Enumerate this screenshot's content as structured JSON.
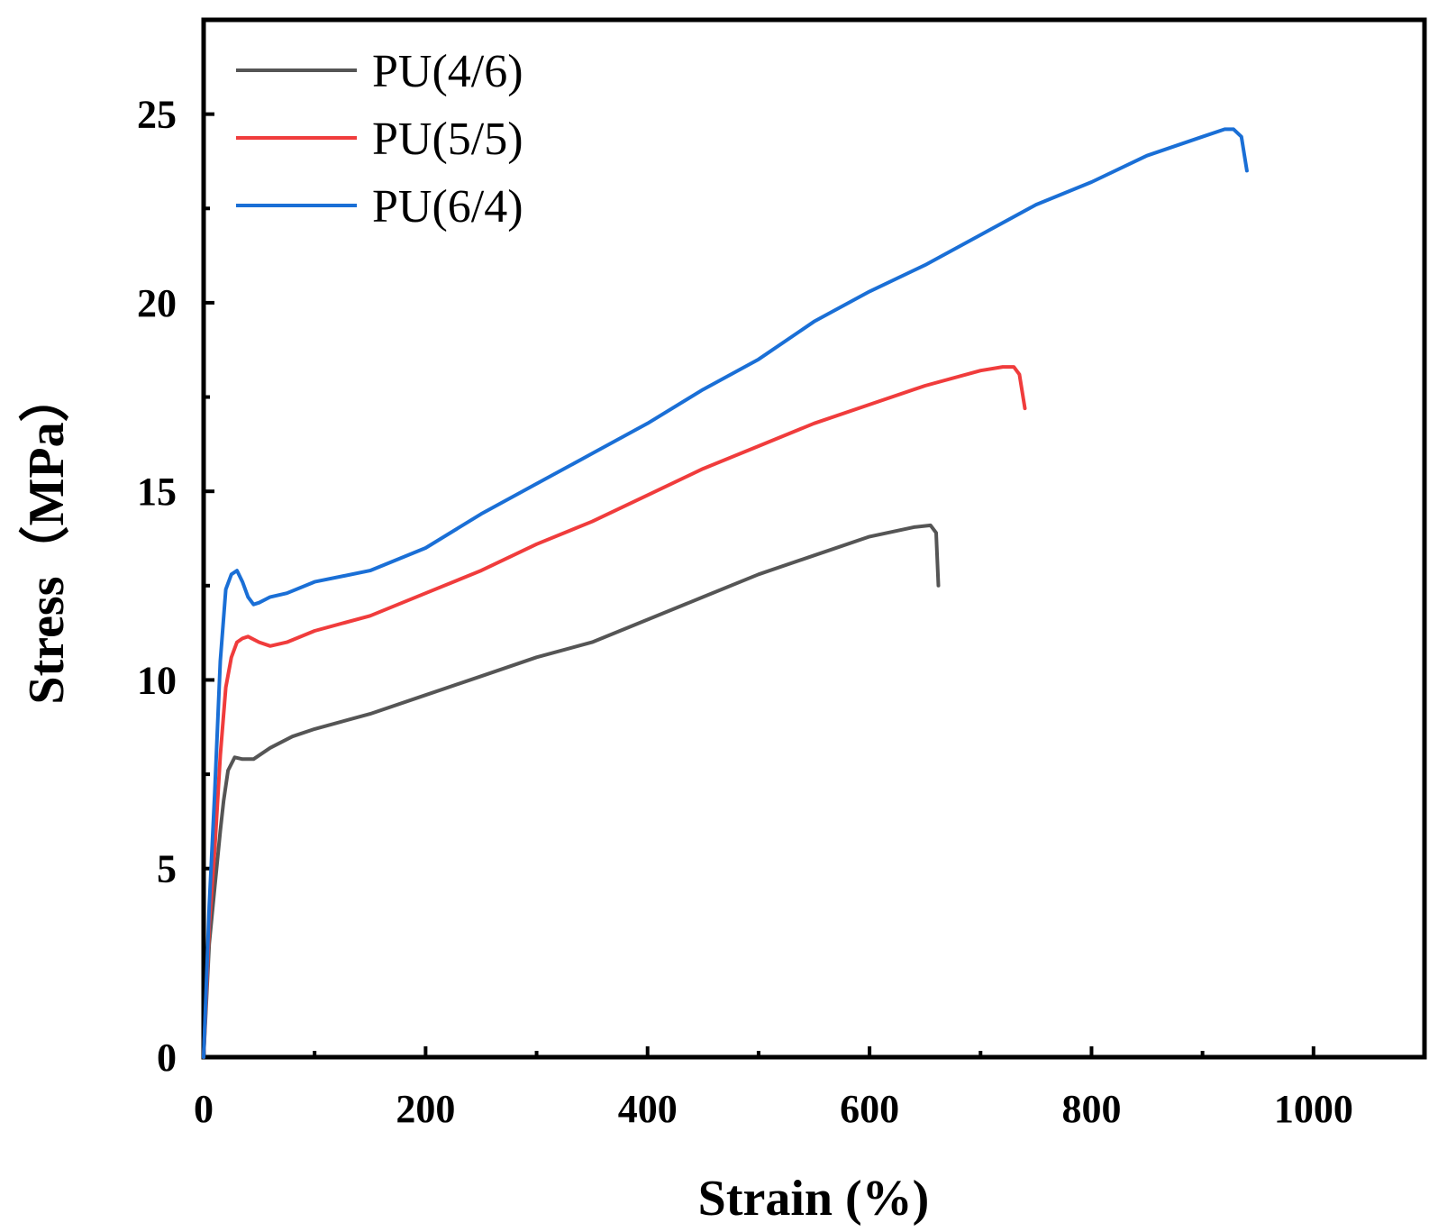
{
  "chart_data": {
    "type": "line",
    "title": "",
    "xlabel": "Strain (%)",
    "ylabel": "Stress（MPa）",
    "xlim": [
      0,
      1100
    ],
    "ylim": [
      0,
      27.5
    ],
    "xticks": [
      0,
      200,
      400,
      600,
      800,
      1000
    ],
    "xtick_labels": [
      "0",
      "200",
      "400",
      "600",
      "800",
      "1000"
    ],
    "yticks": [
      0,
      5,
      10,
      15,
      20,
      25
    ],
    "ytick_labels": [
      "0",
      "5",
      "10",
      "15",
      "20",
      "25"
    ],
    "grid": false,
    "legend_position": "top-left",
    "series": [
      {
        "name": "PU(4/6)",
        "color": "#555555",
        "x": [
          0,
          5,
          10,
          15,
          18,
          22,
          28,
          35,
          45,
          60,
          80,
          100,
          150,
          200,
          250,
          300,
          350,
          400,
          450,
          500,
          550,
          600,
          640,
          655,
          660,
          662
        ],
        "y": [
          0,
          3.0,
          4.5,
          6.0,
          6.8,
          7.6,
          7.95,
          7.9,
          7.9,
          8.2,
          8.5,
          8.7,
          9.1,
          9.6,
          10.1,
          10.6,
          11.0,
          11.6,
          12.2,
          12.8,
          13.3,
          13.8,
          14.05,
          14.1,
          13.9,
          12.5
        ]
      },
      {
        "name": "PU(5/5)",
        "color": "#f03c3c",
        "x": [
          0,
          5,
          10,
          15,
          20,
          25,
          30,
          35,
          40,
          50,
          60,
          75,
          100,
          150,
          200,
          250,
          300,
          350,
          400,
          450,
          500,
          550,
          600,
          650,
          700,
          720,
          730,
          735,
          740
        ],
        "y": [
          0,
          3.5,
          5.5,
          8.0,
          9.8,
          10.6,
          11.0,
          11.1,
          11.15,
          11.0,
          10.9,
          11.0,
          11.3,
          11.7,
          12.3,
          12.9,
          13.6,
          14.2,
          14.9,
          15.6,
          16.2,
          16.8,
          17.3,
          17.8,
          18.2,
          18.3,
          18.3,
          18.1,
          17.2
        ]
      },
      {
        "name": "PU(6/4)",
        "color": "#1a6fd6",
        "x": [
          0,
          5,
          10,
          15,
          20,
          25,
          30,
          35,
          40,
          45,
          50,
          60,
          75,
          100,
          150,
          200,
          250,
          300,
          350,
          400,
          450,
          500,
          550,
          600,
          650,
          700,
          750,
          800,
          850,
          900,
          920,
          928,
          935,
          940
        ],
        "y": [
          0,
          4.0,
          7.0,
          10.5,
          12.4,
          12.8,
          12.9,
          12.6,
          12.2,
          12.0,
          12.05,
          12.2,
          12.3,
          12.6,
          12.9,
          13.5,
          14.4,
          15.2,
          16.0,
          16.8,
          17.7,
          18.5,
          19.5,
          20.3,
          21.0,
          21.8,
          22.6,
          23.2,
          23.9,
          24.4,
          24.6,
          24.6,
          24.4,
          23.5
        ]
      }
    ]
  }
}
